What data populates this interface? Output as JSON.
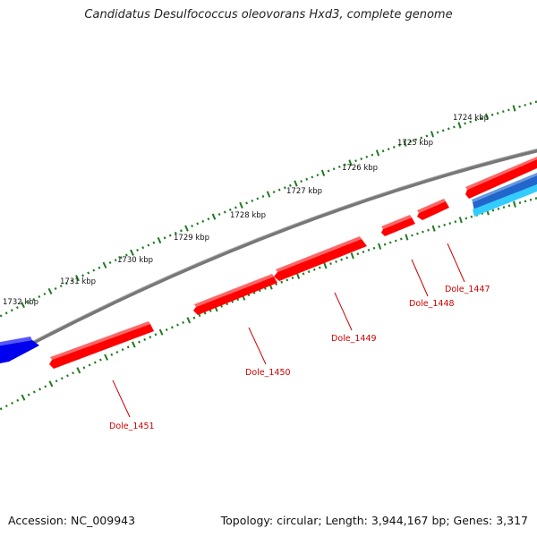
{
  "title": "Candidatus Desulfococcus oleovorans Hxd3, complete genome",
  "accession_text": "Accession: NC_009943",
  "summary_text": "Topology: circular; Length: 3,944,167 bp; Genes: 3,317",
  "colors": {
    "backbone": "#777777",
    "ticks": "#1f7a1f",
    "reverse_gene": "#ff0000",
    "forward_gene": "#0000ee",
    "forward_gene_2": "#33ccff",
    "gene_label": "#cc0000"
  },
  "scale_labels": [
    "1724 kbp",
    "1725 kbp",
    "1726 kbp",
    "1727 kbp",
    "1728 kbp",
    "1729 kbp",
    "1730 kbp",
    "1731 kbp",
    "1732 kbp"
  ],
  "genes": [
    {
      "name": "Dole_1447",
      "strand": "-"
    },
    {
      "name": "Dole_1448",
      "strand": "-"
    },
    {
      "name": "Dole_1449",
      "strand": "-"
    },
    {
      "name": "Dole_1450",
      "strand": "-"
    },
    {
      "name": "Dole_1451",
      "strand": "-"
    }
  ]
}
